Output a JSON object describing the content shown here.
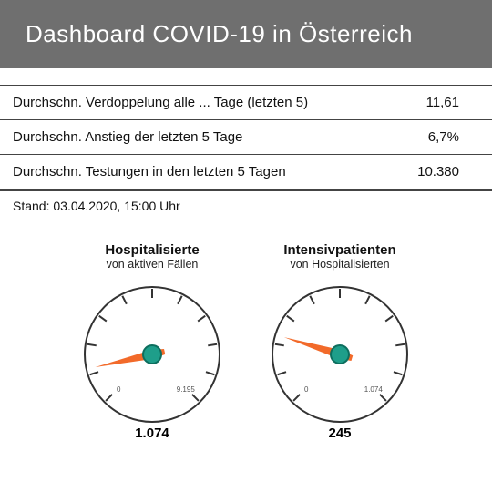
{
  "header": {
    "title": "Dashboard COVID-19 in Österreich"
  },
  "table": {
    "rows": [
      {
        "label": "Durchschn. Verdoppelung alle ... Tage (letzten 5)",
        "value": "11,61"
      },
      {
        "label": "Durchschn. Anstieg der letzten 5 Tage",
        "value": "6,7%"
      },
      {
        "label": "Durchschn. Testungen in den letzten 5 Tagen",
        "value": "10.380"
      }
    ]
  },
  "timestamp": "Stand: 03.04.2020, 15:00 Uhr",
  "gauges": [
    {
      "title": "Hospitalisierte",
      "subtitle": "von aktiven Fällen",
      "value_label": "1.074",
      "min_label": "0",
      "max_label": "9.195",
      "fraction": 0.12,
      "radius": 74,
      "face_fill": "#ffffff",
      "face_stroke": "#333333",
      "face_stroke_width": 2,
      "tick_color": "#333333",
      "needle_color": "#f26a2a",
      "hub_fill": "#1e9e8a",
      "hub_stroke": "#0d6e5e",
      "title_fontsize": 15,
      "subtitle_fontsize": 12.5,
      "value_fontsize": 15
    },
    {
      "title": "Intensivpatienten",
      "subtitle": "von Hospitalisierten",
      "value_label": "245",
      "min_label": "0",
      "max_label": "1.074",
      "fraction": 0.23,
      "radius": 74,
      "face_fill": "#ffffff",
      "face_stroke": "#333333",
      "face_stroke_width": 2,
      "tick_color": "#333333",
      "needle_color": "#f26a2a",
      "hub_fill": "#1e9e8a",
      "hub_stroke": "#0d6e5e",
      "title_fontsize": 15,
      "subtitle_fontsize": 12.5,
      "value_fontsize": 15
    }
  ],
  "gauge_scale": {
    "start_deg": 225,
    "end_deg": -45,
    "ticks": 11
  }
}
